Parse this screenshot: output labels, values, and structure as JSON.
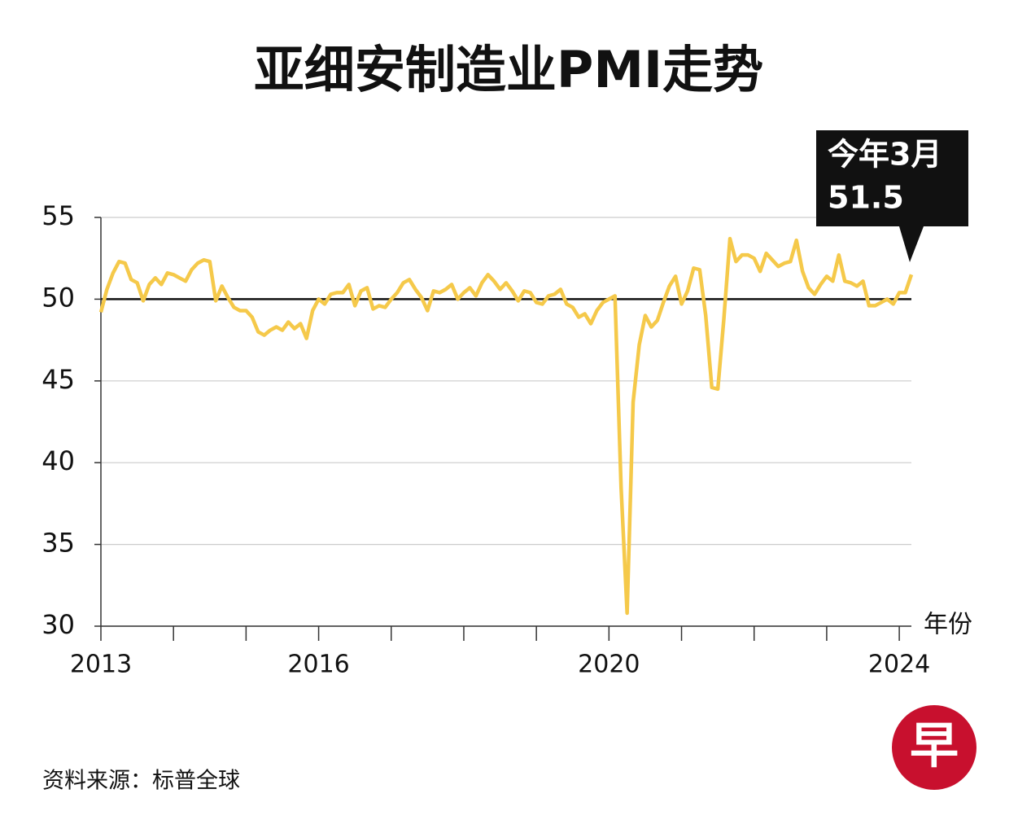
{
  "chart_data": {
    "type": "line",
    "title": "亚细安制造业PMI走势",
    "annotation": "今年3月",
    "x_label": "年份",
    "source": "资料来源：标普全球",
    "logo": "早",
    "x": [
      2013,
      2013.083,
      2013.167,
      2013.25,
      2013.333,
      2013.417,
      2013.5,
      2013.583,
      2013.667,
      2013.75,
      2013.833,
      2013.917,
      2014,
      2014.083,
      2014.167,
      2014.25,
      2014.333,
      2014.417,
      2014.5,
      2014.583,
      2014.667,
      2014.75,
      2014.833,
      2014.917,
      2015,
      2015.083,
      2015.167,
      2015.25,
      2015.333,
      2015.417,
      2015.5,
      2015.583,
      2015.667,
      2015.75,
      2015.833,
      2015.917,
      2016,
      2016.083,
      2016.167,
      2016.25,
      2016.333,
      2016.417,
      2016.5,
      2016.583,
      2016.667,
      2016.75,
      2016.833,
      2016.917,
      2017,
      2017.083,
      2017.167,
      2017.25,
      2017.333,
      2017.417,
      2017.5,
      2017.583,
      2017.667,
      2017.75,
      2017.833,
      2017.917,
      2018,
      2018.083,
      2018.167,
      2018.25,
      2018.333,
      2018.417,
      2018.5,
      2018.583,
      2018.667,
      2018.75,
      2018.833,
      2018.917,
      2019,
      2019.083,
      2019.167,
      2019.25,
      2019.333,
      2019.417,
      2019.5,
      2019.583,
      2019.667,
      2019.75,
      2019.833,
      2019.917,
      2020,
      2020.083,
      2020.167,
      2020.25,
      2020.333,
      2020.417,
      2020.5,
      2020.583,
      2020.667,
      2020.75,
      2020.833,
      2020.917,
      2021,
      2021.083,
      2021.167,
      2021.25,
      2021.333,
      2021.417,
      2021.5,
      2021.583,
      2021.667,
      2021.75,
      2021.833,
      2021.917,
      2022,
      2022.083,
      2022.167,
      2022.25,
      2022.333,
      2022.417,
      2022.5,
      2022.583,
      2022.667,
      2022.75,
      2022.833,
      2022.917,
      2023,
      2023.083,
      2023.167,
      2023.25,
      2023.333,
      2023.417,
      2023.5,
      2023.583,
      2023.667,
      2023.75,
      2023.833,
      2023.917,
      2024,
      2024.083,
      2024.167
    ],
    "values": [
      49.2,
      50.6,
      51.6,
      52.3,
      52.2,
      51.2,
      51.0,
      49.9,
      50.9,
      51.3,
      50.9,
      51.6,
      51.5,
      51.3,
      51.1,
      51.8,
      52.2,
      52.4,
      52.3,
      49.9,
      50.8,
      50.1,
      49.5,
      49.3,
      49.3,
      48.9,
      48.0,
      47.8,
      48.1,
      48.3,
      48.1,
      48.6,
      48.2,
      48.5,
      47.6,
      49.3,
      50.0,
      49.7,
      50.3,
      50.4,
      50.4,
      50.9,
      49.6,
      50.5,
      50.7,
      49.4,
      49.6,
      49.5,
      50.0,
      50.4,
      51.0,
      51.2,
      50.6,
      50.1,
      49.3,
      50.5,
      50.4,
      50.6,
      50.9,
      50.0,
      50.4,
      50.7,
      50.2,
      51.0,
      51.5,
      51.1,
      50.6,
      51.0,
      50.5,
      49.9,
      50.5,
      50.4,
      49.8,
      49.7,
      50.2,
      50.3,
      50.6,
      49.7,
      49.5,
      48.9,
      49.1,
      48.5,
      49.3,
      49.8,
      50.0,
      50.2,
      38.5,
      30.8,
      43.7,
      47.2,
      49.0,
      48.3,
      48.7,
      49.8,
      50.8,
      51.4,
      49.7,
      50.5,
      51.9,
      51.8,
      49.0,
      44.6,
      44.5,
      48.8,
      53.7,
      52.3,
      52.7,
      52.7,
      52.5,
      51.7,
      52.8,
      52.4,
      52.0,
      52.2,
      52.3,
      53.6,
      51.7,
      50.7,
      50.3,
      50.9,
      51.4,
      51.1,
      52.7,
      51.1,
      51.0,
      50.8,
      51.1,
      49.6,
      49.6,
      49.8,
      50.0,
      49.7,
      50.4,
      50.4,
      51.5
    ],
    "color": "#f5c94a",
    "xlim": [
      2013,
      2024.167
    ],
    "xticks": [
      2013,
      2016,
      2020,
      2024
    ],
    "xminor_ticks": [
      2014,
      2015,
      2017,
      2018,
      2019,
      2021,
      2022,
      2023
    ],
    "ylim": [
      30,
      55
    ],
    "yticks": [
      30,
      35,
      40,
      45,
      50,
      55
    ],
    "grid": true,
    "reference_line": 50
  }
}
